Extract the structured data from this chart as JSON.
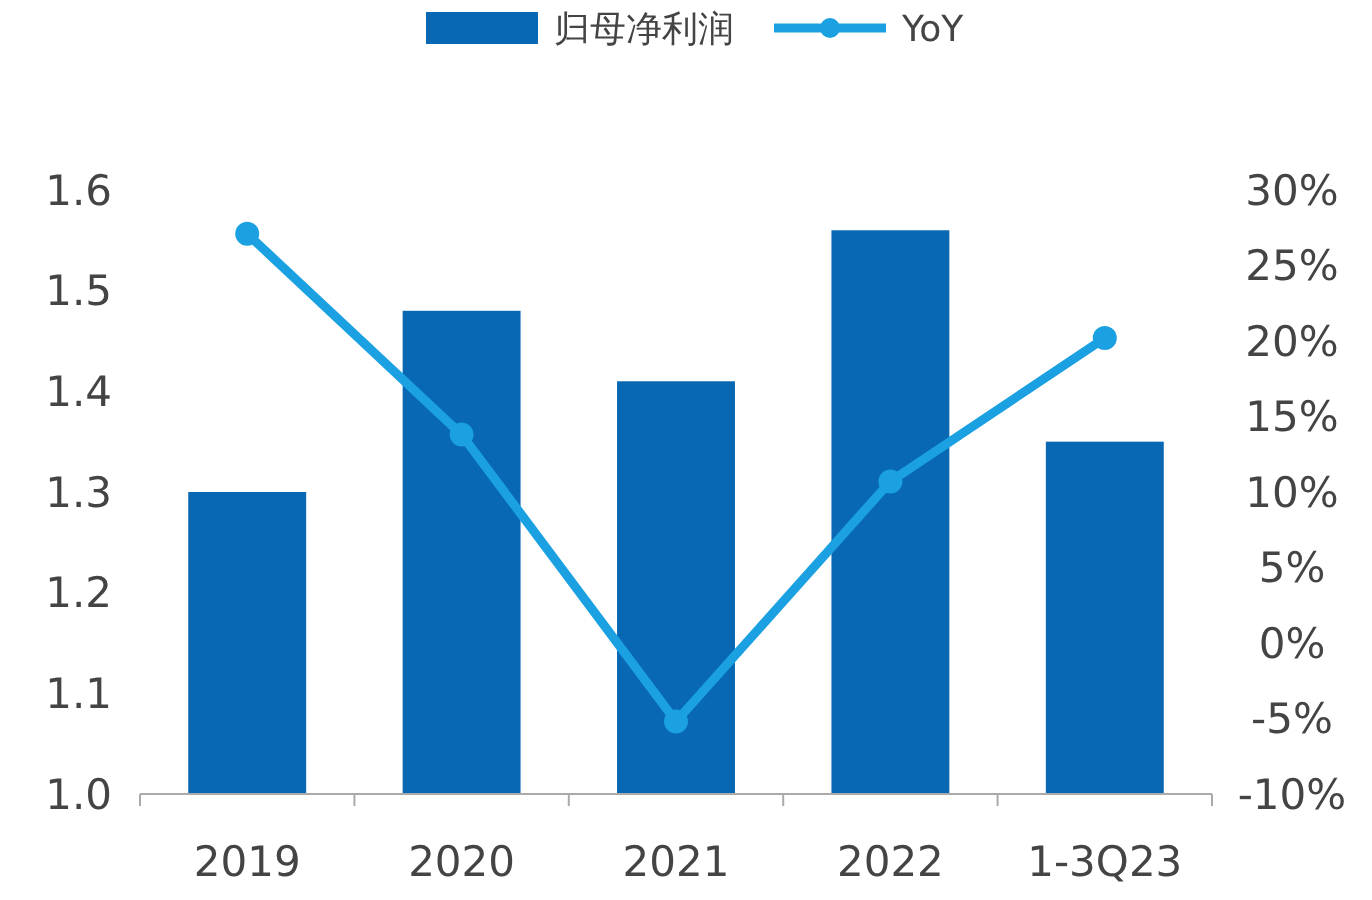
{
  "chart_data": {
    "type": "bar",
    "categories": [
      "2019",
      "2020",
      "2021",
      "2022",
      "1-3Q23"
    ],
    "series": [
      {
        "name": "归母净利润",
        "color": "#0868b4",
        "values": [
          1.3,
          1.48,
          1.41,
          1.56,
          1.35
        ]
      },
      {
        "name": "YoY",
        "type": "line",
        "axis": "y2",
        "color": "#1ba1e2",
        "values": [
          27.1,
          13.8,
          -5.2,
          10.7,
          20.2
        ]
      }
    ],
    "ylim": [
      1.0,
      1.6
    ],
    "yticks": [
      {
        "value": 1.0,
        "label": "1.0"
      },
      1.1,
      1.2,
      1.3,
      1.4,
      1.5,
      1.6
    ],
    "y2lim": [
      -10,
      30
    ],
    "y2ticks": [
      {
        "value": -10,
        "label": "-10%"
      },
      {
        "value": -5,
        "label": "-5%"
      },
      {
        "value": 0,
        "label": "0%"
      },
      {
        "value": 5,
        "label": "5%"
      },
      {
        "value": 10,
        "label": "10%"
      },
      {
        "value": 15,
        "label": "15%"
      },
      {
        "value": 20,
        "label": "20%"
      },
      {
        "value": 25,
        "label": "25%"
      },
      {
        "value": 30,
        "label": "30%"
      }
    ],
    "legend": "top",
    "marker": "circle",
    "grid": false
  }
}
